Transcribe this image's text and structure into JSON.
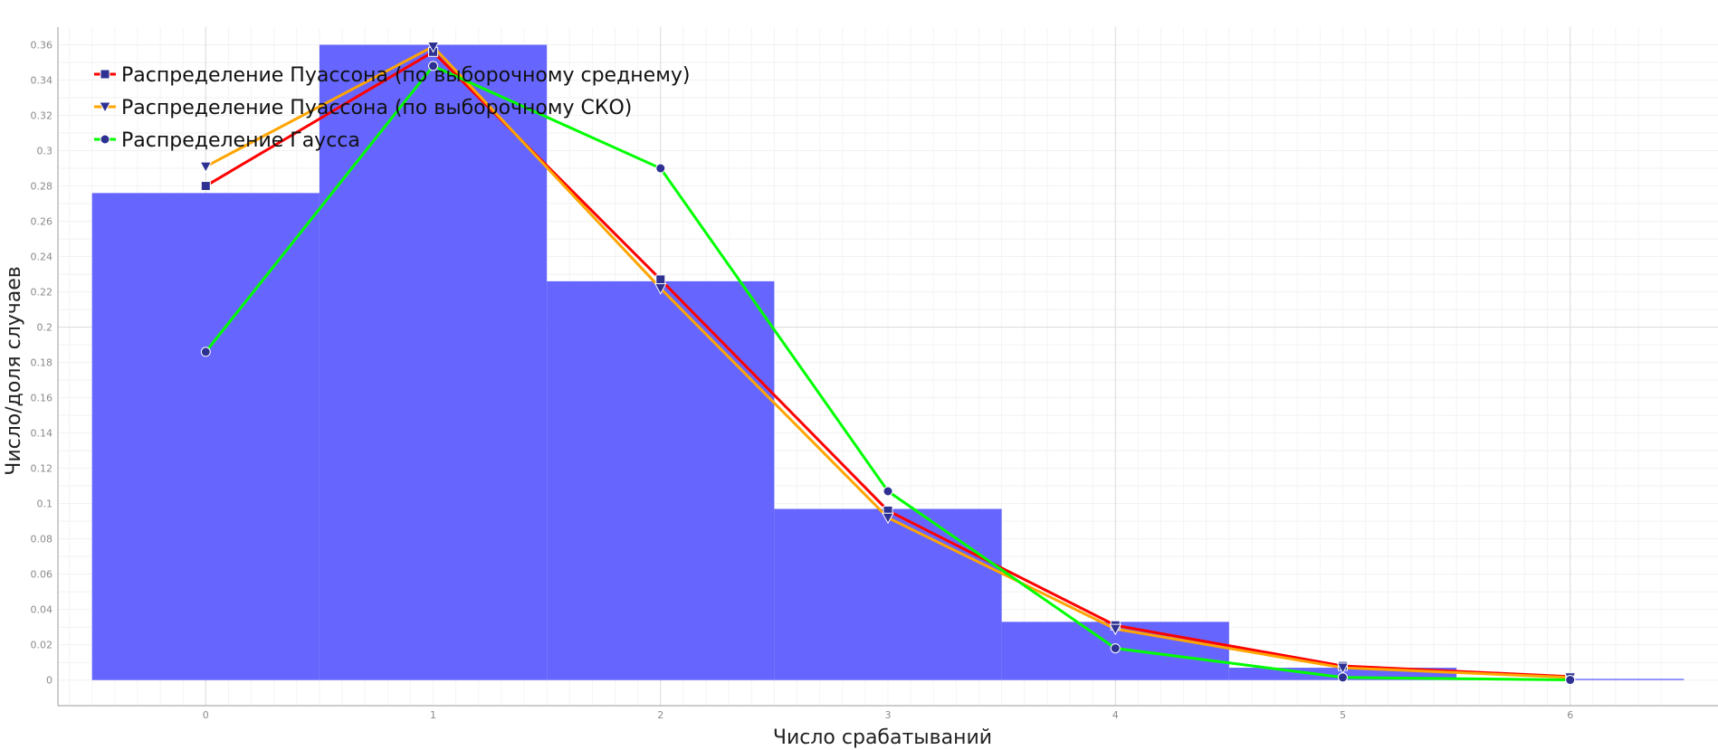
{
  "chart_data": {
    "type": "bar",
    "xlabel": "Число срабатываний",
    "ylabel": "Число/доля случаев",
    "xlim": [
      -0.65,
      6.65
    ],
    "ylim": [
      -0.0145,
      0.37
    ],
    "grid": true,
    "legend_position": "top-left",
    "x_ticks": [
      "0",
      "1",
      "2",
      "3",
      "4",
      "5",
      "6"
    ],
    "y_ticks": [
      "0",
      "0.02",
      "0.04",
      "0.06",
      "0.08",
      "0.1",
      "0.12",
      "0.14",
      "0.16",
      "0.18",
      "0.2",
      "0.22",
      "0.24",
      "0.26",
      "0.28",
      "0.3",
      "0.32",
      "0.34",
      "0.36"
    ],
    "histogram": {
      "color": "#6666ff",
      "x": [
        0,
        1,
        2,
        3,
        4,
        5,
        6
      ],
      "values": [
        0.276,
        0.36,
        0.226,
        0.097,
        0.033,
        0.007,
        0.0007
      ]
    },
    "series": [
      {
        "name": "Распределение Пуассона (по выборочному среднему)",
        "color": "#ff0000",
        "marker": "square",
        "x": [
          0,
          1,
          2,
          3,
          4,
          5,
          6
        ],
        "values": [
          0.28,
          0.356,
          0.227,
          0.096,
          0.031,
          0.008,
          0.002
        ]
      },
      {
        "name": "Распределение Пуассона (по выборочному СКО)",
        "color": "#ffa500",
        "marker": "triangle-down",
        "x": [
          0,
          1,
          2,
          3,
          4,
          5,
          6
        ],
        "values": [
          0.291,
          0.359,
          0.222,
          0.092,
          0.029,
          0.007,
          0.0015
        ]
      },
      {
        "name": "Распределение Гаусса",
        "color": "#00ff00",
        "marker": "circle",
        "x": [
          0,
          1,
          2,
          3,
          4,
          5,
          6
        ],
        "values": [
          0.186,
          0.348,
          0.29,
          0.107,
          0.018,
          0.0015,
          0.0001
        ]
      }
    ]
  }
}
